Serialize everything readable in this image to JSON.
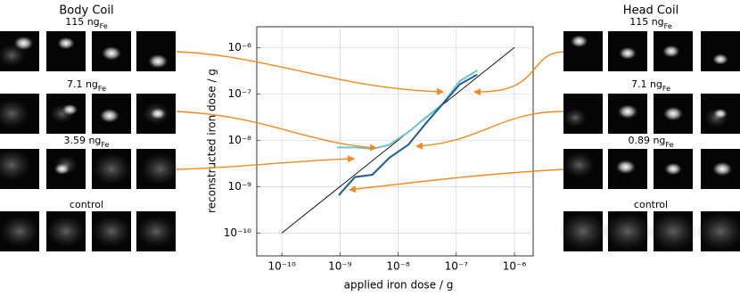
{
  "chart_data": {
    "type": "line",
    "x_label": "applied iron dose / g",
    "y_label": "reconstructed iron dose / g",
    "log_x": true,
    "log_y": true,
    "grid": true,
    "xlim": [
      3.7e-11,
      2.1e-06
    ],
    "ylim": [
      3.2e-11,
      2.8e-06
    ],
    "xticks": [
      {
        "value": 1e-10,
        "label": "10⁻¹⁰"
      },
      {
        "value": 1e-09,
        "label": "10⁻⁹"
      },
      {
        "value": 1e-08,
        "label": "10⁻⁸"
      },
      {
        "value": 1e-07,
        "label": "10⁻⁷"
      },
      {
        "value": 1e-06,
        "label": "10⁻⁶"
      }
    ],
    "yticks": [
      {
        "value": 1e-10,
        "label": "10⁻¹⁰"
      },
      {
        "value": 1e-09,
        "label": "10⁻⁹"
      },
      {
        "value": 1e-08,
        "label": "10⁻⁸"
      },
      {
        "value": 1e-07,
        "label": "10⁻⁷"
      },
      {
        "value": 1e-06,
        "label": "10⁻⁶"
      }
    ],
    "series": [
      {
        "color": "#000000",
        "width": 0.9,
        "x": [
          1e-10,
          1e-06
        ],
        "values": [
          1e-10,
          1e-06
        ]
      },
      {
        "color": "#6cc3d5",
        "width": 2,
        "x": [
          8.9e-10,
          1.8e-09,
          3.6e-09,
          7.1e-09,
          1.5e-08,
          2.9e-08,
          5.8e-08,
          1.15e-07,
          2.3e-07
        ],
        "values": [
          7e-09,
          7e-09,
          6.5e-09,
          8e-09,
          1.5e-08,
          3e-08,
          6e-08,
          1.9e-07,
          3.2e-07
        ]
      },
      {
        "color": "#1f5a96",
        "width": 2,
        "x": [
          9.5e-10,
          1.8e-09,
          3.6e-09,
          7.1e-09,
          1.5e-08,
          2.9e-08,
          5.8e-08,
          1.15e-07,
          2.3e-07
        ],
        "values": [
          6.5e-10,
          1.6e-09,
          1.8e-09,
          4.2e-09,
          8e-09,
          2.2e-08,
          6e-08,
          1.6e-07,
          2.6e-07
        ]
      }
    ],
    "panels": [
      {
        "title": "Body Coil",
        "rows": [
          {
            "label": "115 ng",
            "sub": "Fe"
          },
          {
            "label": "7.1 ng",
            "sub": "Fe"
          },
          {
            "label": "3.59 ng",
            "sub": "Fe"
          },
          {
            "label": "control"
          }
        ]
      },
      {
        "title": "Head Coil",
        "rows": [
          {
            "label": "115 ng",
            "sub": "Fe"
          },
          {
            "label": "7.1 ng",
            "sub": "Fe"
          },
          {
            "label": "0.89 ng",
            "sub": "Fe"
          },
          {
            "label": "control"
          }
        ]
      }
    ]
  }
}
